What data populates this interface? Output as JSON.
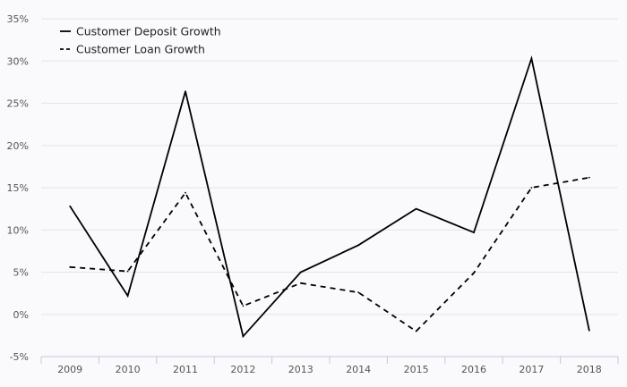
{
  "chart_data": {
    "type": "line",
    "x": [
      "2009",
      "2010",
      "2011",
      "2012",
      "2013",
      "2014",
      "2015",
      "2016",
      "2017",
      "2018"
    ],
    "series": [
      {
        "name": "Customer Deposit Growth",
        "style": "solid",
        "color": "#000000",
        "values": [
          12.8,
          2.2,
          26.4,
          -2.6,
          5.0,
          8.2,
          12.5,
          9.7,
          30.3,
          -1.9
        ]
      },
      {
        "name": "Customer Loan Growth",
        "style": "dashed",
        "color": "#000000",
        "values": [
          5.6,
          5.1,
          14.4,
          1.0,
          3.7,
          2.6,
          -2.0,
          4.9,
          15.0,
          16.2
        ]
      }
    ],
    "y_ticks": [
      -5,
      0,
      5,
      10,
      15,
      20,
      25,
      30,
      35
    ],
    "y_tick_labels": [
      "-5%",
      "0%",
      "5%",
      "10%",
      "15%",
      "20%",
      "25%",
      "30%",
      "35%"
    ],
    "ylim": [
      -5,
      35
    ],
    "title": "",
    "xlabel": "",
    "ylabel": "",
    "grid": "horizontal",
    "legend": "top-left"
  }
}
